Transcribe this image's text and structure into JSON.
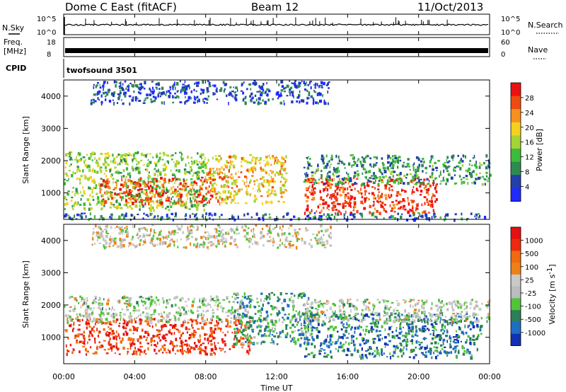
{
  "header": {
    "station": "Dome C East (fitACF)",
    "beam": "Beam 12",
    "date": "11/Oct/2013"
  },
  "strips": {
    "nsky_label": "N.Sky",
    "nsky_ticks": [
      "10^5",
      "10^0"
    ],
    "nsearch_label": "N.Search",
    "nsearch_ticks": [
      "10^5",
      "10^0"
    ],
    "freq_label_1": "Freq.",
    "freq_label_2": "[MHz]",
    "freq_ticks": [
      "18",
      "8"
    ],
    "nave_label": "Nave",
    "nave_ticks": [
      "60",
      "0"
    ],
    "cpid_label": "CPID",
    "cpid_value": "twofsound 3501"
  },
  "x_axis": {
    "ticks": [
      "00:00",
      "04:00",
      "08:00",
      "12:00",
      "16:00",
      "20:00",
      "00:00"
    ],
    "label": "Time UT"
  },
  "colors": {
    "power_scale": [
      "#1f2bff",
      "#2140a8",
      "#2f8a52",
      "#3dbb3c",
      "#a5d434",
      "#f3d21c",
      "#f7911c",
      "#f04a10",
      "#ee1010"
    ],
    "velocity_scale": [
      "#1232b4",
      "#1e6ec2",
      "#2d7f57",
      "#52c33a",
      "#bcbcbc",
      "#c9c9c9",
      "#ee8018",
      "#f06a10",
      "#ec2a10",
      "#e61010"
    ]
  },
  "chart_data": [
    {
      "type": "heatmap",
      "panel": "power",
      "xlabel": "",
      "ylabel": "Slant Range [km]",
      "xlim": [
        0,
        24
      ],
      "ylim": [
        180,
        4500
      ],
      "yticks": [
        "1000",
        "2000",
        "3000",
        "4000"
      ],
      "colorbar_label": "Power [dB]",
      "colorbar_ticks": [
        "4",
        "8",
        "12",
        "16",
        "20",
        "24",
        "28"
      ],
      "bands": [
        {
          "t0": 0.0,
          "t1": 8.0,
          "r0": 500,
          "r1": 2300,
          "level": 0.45
        },
        {
          "t0": 2.0,
          "t1": 8.5,
          "r0": 700,
          "r1": 1500,
          "level": 0.85
        },
        {
          "t0": 8.0,
          "t1": 12.5,
          "r0": 700,
          "r1": 2200,
          "level": 0.65
        },
        {
          "t0": 13.5,
          "t1": 21.0,
          "r0": 400,
          "r1": 1500,
          "level": 0.9
        },
        {
          "t0": 13.5,
          "t1": 24.0,
          "r0": 1300,
          "r1": 2200,
          "level": 0.3
        },
        {
          "t0": 0.0,
          "t1": 24.0,
          "r0": 200,
          "r1": 400,
          "level": 0.2
        },
        {
          "t0": 1.5,
          "t1": 15.0,
          "r0": 3800,
          "r1": 4500,
          "level": 0.15
        }
      ]
    },
    {
      "type": "heatmap",
      "panel": "velocity",
      "xlabel": "Time UT",
      "ylabel": "Slant Range [km]",
      "xlim": [
        0,
        24
      ],
      "ylim": [
        180,
        4500
      ],
      "yticks": [
        "1000",
        "2000",
        "3000",
        "4000"
      ],
      "colorbar_label": "Velocity [m s",
      "colorbar_label_sup": "-1",
      "colorbar_label_end": "]",
      "colorbar_ticks": [
        "1000",
        "500",
        "100",
        "25",
        "-25",
        "-100",
        "-500",
        "-1000"
      ],
      "bands": [
        {
          "t0": 0.0,
          "t1": 10.5,
          "r0": 500,
          "r1": 1600,
          "level": 0.85
        },
        {
          "t0": 0.0,
          "t1": 10.0,
          "r0": 1500,
          "r1": 2300,
          "level": 0.45
        },
        {
          "t0": 9.5,
          "t1": 14.0,
          "r0": 800,
          "r1": 2400,
          "level": 0.3
        },
        {
          "t0": 13.5,
          "t1": 23.5,
          "r0": 400,
          "r1": 1800,
          "level": 0.2
        },
        {
          "t0": 13.5,
          "t1": 24.0,
          "r0": 1500,
          "r1": 2200,
          "level": 0.45
        },
        {
          "t0": 1.5,
          "t1": 15.0,
          "r0": 3800,
          "r1": 4500,
          "level": 0.5
        }
      ]
    }
  ]
}
